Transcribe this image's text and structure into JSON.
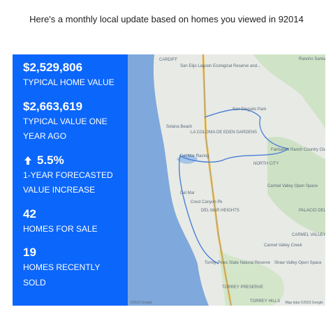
{
  "header": {
    "text": "Here's a monthly local update based on homes you viewed in 92014"
  },
  "stats": [
    {
      "value": "$2,529,806",
      "label": "TYPICAL HOME VALUE"
    },
    {
      "value": "$2,663,619",
      "label": "TYPICAL VALUE ONE YEAR AGO"
    },
    {
      "value": "5.5%",
      "label": "1-YEAR FORECASTED VALUE INCREASE"
    },
    {
      "value": "42",
      "label": "HOMES FOR SALE"
    },
    {
      "value": "19",
      "label": "HOMES RECENTLY SOLD"
    }
  ],
  "map": {
    "labels": [
      "CARDIFF",
      "San Elijo Lagoon Ecological Reserve and...",
      "Rancho Santa Fe",
      "San Dieguito Park",
      "Solana Beach",
      "LA COLONIA DE EDEN GARDENS",
      "Del Mar Racing",
      "Fairbanks Ranch Country Club",
      "NORTH CITY",
      "Carmel Valley Open Space",
      "Del Mar",
      "Crest Canyon Pk",
      "DEL MAR HEIGHTS",
      "PALACIO DEL MAR",
      "CARMEL VALLEY",
      "Carmel Valley Creek",
      "Torrey Pines State Natural Reserve",
      "Shaw Valley Open Space",
      "TORREY PRESERVE",
      "TORREY HILLS"
    ],
    "attribution": "©2023 Google",
    "map_data": "Map data ©2023 Google"
  }
}
